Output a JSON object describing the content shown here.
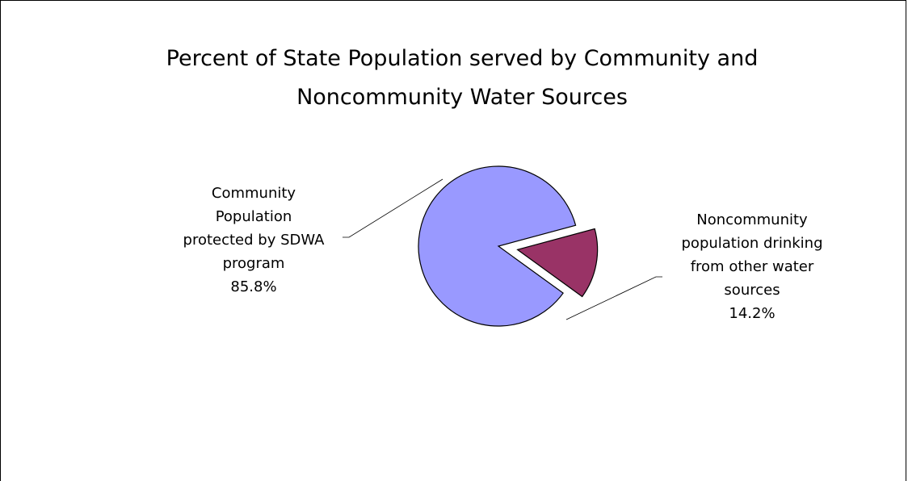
{
  "chart_data": {
    "type": "pie",
    "title_lines": [
      "Percent of State Population served by Community and",
      "Noncommunity Water Sources"
    ],
    "slices": [
      {
        "label_lines": [
          "Community",
          "Population",
          "protected by SDWA",
          "program"
        ],
        "value_label": "85.8%",
        "value": 85.8,
        "color": "#9999ff",
        "exploded": false
      },
      {
        "label_lines": [
          "Noncommunity",
          "population drinking",
          "from other water",
          "sources"
        ],
        "value_label": "14.2%",
        "value": 14.2,
        "color": "#993366",
        "exploded": true
      }
    ],
    "legend": "none"
  }
}
